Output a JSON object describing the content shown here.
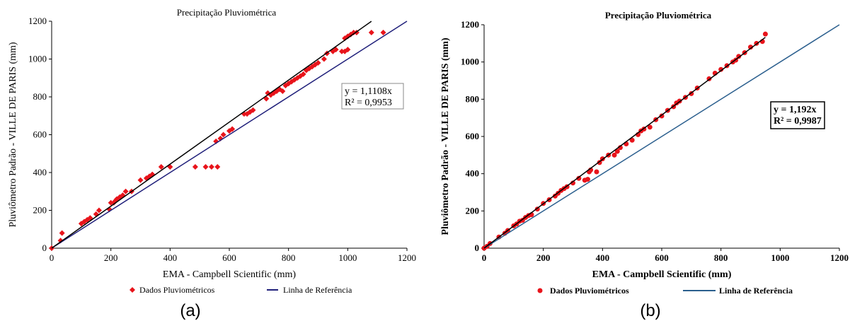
{
  "chart_data": [
    {
      "type": "scatter",
      "panel_label": "(a)",
      "title": "Precipitação Pluviométrica",
      "xlabel": "EMA - Campbell Scientific (mm)",
      "ylabel": "Pluviômetro Padrão - VILLE DE PARIS (mm)",
      "xlim": [
        0,
        1200
      ],
      "ylim": [
        0,
        1200
      ],
      "xticks": [
        0,
        200,
        400,
        600,
        800,
        1000,
        1200
      ],
      "yticks": [
        0,
        200,
        400,
        600,
        800,
        1000,
        1200
      ],
      "grid": false,
      "legend_position": "bottom",
      "series": [
        {
          "name": "Dados Pluviométricos",
          "color": "#e8141b",
          "marker": "diamond",
          "points": [
            [
              0,
              0
            ],
            [
              30,
              40
            ],
            [
              35,
              80
            ],
            [
              100,
              130
            ],
            [
              110,
              140
            ],
            [
              120,
              150
            ],
            [
              130,
              160
            ],
            [
              150,
              180
            ],
            [
              160,
              200
            ],
            [
              195,
              205
            ],
            [
              200,
              240
            ],
            [
              210,
              240
            ],
            [
              215,
              250
            ],
            [
              220,
              260
            ],
            [
              230,
              270
            ],
            [
              240,
              280
            ],
            [
              250,
              300
            ],
            [
              270,
              300
            ],
            [
              300,
              360
            ],
            [
              320,
              370
            ],
            [
              330,
              380
            ],
            [
              340,
              390
            ],
            [
              370,
              430
            ],
            [
              400,
              430
            ],
            [
              485,
              430
            ],
            [
              520,
              430
            ],
            [
              540,
              430
            ],
            [
              560,
              430
            ],
            [
              555,
              565
            ],
            [
              570,
              580
            ],
            [
              580,
              600
            ],
            [
              600,
              620
            ],
            [
              610,
              630
            ],
            [
              650,
              710
            ],
            [
              660,
              710
            ],
            [
              670,
              720
            ],
            [
              680,
              730
            ],
            [
              725,
              790
            ],
            [
              730,
              820
            ],
            [
              740,
              810
            ],
            [
              750,
              820
            ],
            [
              760,
              830
            ],
            [
              770,
              840
            ],
            [
              780,
              830
            ],
            [
              790,
              860
            ],
            [
              800,
              870
            ],
            [
              810,
              880
            ],
            [
              820,
              890
            ],
            [
              830,
              900
            ],
            [
              840,
              910
            ],
            [
              850,
              920
            ],
            [
              860,
              940
            ],
            [
              870,
              950
            ],
            [
              880,
              960
            ],
            [
              890,
              970
            ],
            [
              900,
              980
            ],
            [
              920,
              1000
            ],
            [
              930,
              1030
            ],
            [
              950,
              1040
            ],
            [
              960,
              1050
            ],
            [
              980,
              1040
            ],
            [
              990,
              1040
            ],
            [
              1000,
              1050
            ],
            [
              990,
              1110
            ],
            [
              1000,
              1120
            ],
            [
              1010,
              1130
            ],
            [
              1020,
              1140
            ],
            [
              1030,
              1140
            ],
            [
              1080,
              1140
            ],
            [
              1120,
              1140
            ]
          ]
        },
        {
          "name": "Linha de Referência",
          "color": "#1f1f7a",
          "type": "line",
          "points": [
            [
              0,
              0
            ],
            [
              1200,
              1200
            ]
          ]
        },
        {
          "name": "",
          "color": "#000000",
          "type": "line",
          "points": [
            [
              0,
              0
            ],
            [
              1080,
              1199.7
            ]
          ]
        }
      ],
      "annotation": {
        "equation": "y = 1,1108x",
        "r2": "R² = 0,9953"
      }
    },
    {
      "type": "scatter",
      "panel_label": "(b)",
      "title": "Precipitação Pluviométrica",
      "xlabel": "EMA - Campbell Scientific (mm)",
      "ylabel": "Pluviômetro Padrão - VILLE DE PARIS (mm)",
      "xlim": [
        0,
        1200
      ],
      "ylim": [
        0,
        1200
      ],
      "xticks": [
        0,
        200,
        400,
        600,
        800,
        1000,
        1200
      ],
      "yticks": [
        0,
        200,
        400,
        600,
        800,
        1000,
        1200
      ],
      "grid": false,
      "legend_position": "bottom",
      "series": [
        {
          "name": "Dados Pluviométricos",
          "color": "#e8141b",
          "marker": "circle",
          "points": [
            [
              0,
              0
            ],
            [
              10,
              10
            ],
            [
              20,
              25
            ],
            [
              50,
              60
            ],
            [
              70,
              80
            ],
            [
              80,
              95
            ],
            [
              100,
              120
            ],
            [
              110,
              130
            ],
            [
              120,
              145
            ],
            [
              130,
              150
            ],
            [
              140,
              165
            ],
            [
              150,
              175
            ],
            [
              160,
              180
            ],
            [
              180,
              210
            ],
            [
              200,
              240
            ],
            [
              220,
              260
            ],
            [
              240,
              280
            ],
            [
              250,
              295
            ],
            [
              260,
              310
            ],
            [
              270,
              320
            ],
            [
              280,
              330
            ],
            [
              300,
              350
            ],
            [
              320,
              375
            ],
            [
              340,
              365
            ],
            [
              350,
              370
            ],
            [
              355,
              410
            ],
            [
              360,
              420
            ],
            [
              380,
              410
            ],
            [
              390,
              460
            ],
            [
              400,
              480
            ],
            [
              420,
              500
            ],
            [
              440,
              500
            ],
            [
              450,
              520
            ],
            [
              460,
              540
            ],
            [
              480,
              560
            ],
            [
              500,
              580
            ],
            [
              520,
              610
            ],
            [
              530,
              630
            ],
            [
              540,
              640
            ],
            [
              560,
              650
            ],
            [
              580,
              690
            ],
            [
              600,
              710
            ],
            [
              620,
              740
            ],
            [
              640,
              760
            ],
            [
              650,
              780
            ],
            [
              660,
              790
            ],
            [
              680,
              810
            ],
            [
              700,
              830
            ],
            [
              720,
              860
            ],
            [
              760,
              910
            ],
            [
              780,
              940
            ],
            [
              800,
              960
            ],
            [
              820,
              980
            ],
            [
              840,
              1000
            ],
            [
              850,
              1010
            ],
            [
              860,
              1030
            ],
            [
              880,
              1050
            ],
            [
              900,
              1080
            ],
            [
              920,
              1100
            ],
            [
              940,
              1110
            ],
            [
              950,
              1150
            ]
          ]
        },
        {
          "name": "Linha de Referência",
          "color": "#2b5f8e",
          "type": "line",
          "points": [
            [
              0,
              0
            ],
            [
              1200,
              1200
            ]
          ]
        },
        {
          "name": "",
          "color": "#000000",
          "type": "line",
          "points": [
            [
              0,
              0
            ],
            [
              950,
              1132.4
            ]
          ]
        }
      ],
      "annotation": {
        "equation": "y = 1,192x",
        "r2": "R² = 0,9987"
      }
    }
  ]
}
